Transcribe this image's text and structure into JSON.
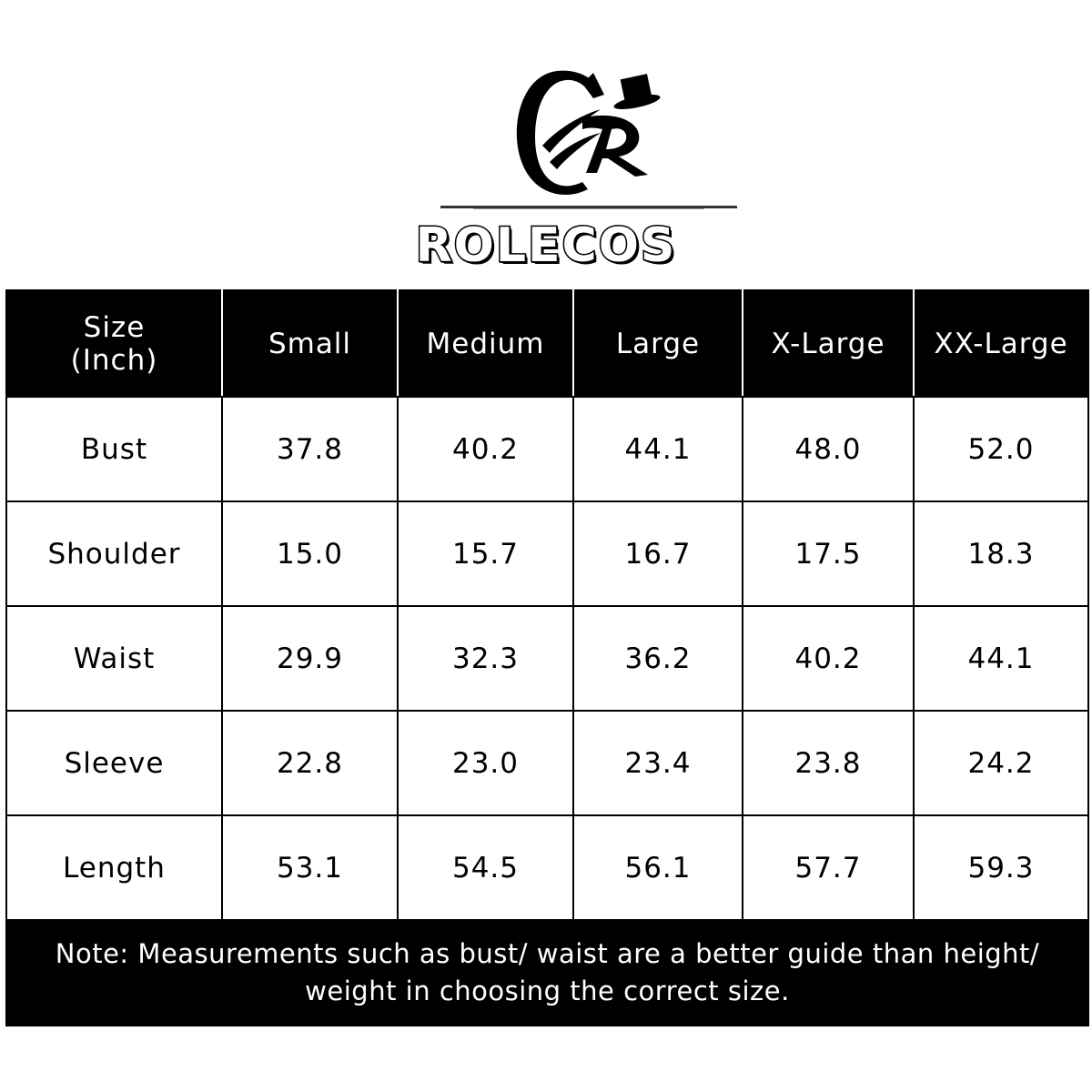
{
  "brand": {
    "monogram": "CR",
    "name": "ROLECOS"
  },
  "size_chart": {
    "corner_label_line1": "Size",
    "corner_label_line2": "(Inch)",
    "sizes": [
      "Small",
      "Medium",
      "Large",
      "X-Large",
      "XX-Large"
    ],
    "rows": [
      {
        "label": "Bust",
        "values": [
          "37.8",
          "40.2",
          "44.1",
          "48.0",
          "52.0"
        ]
      },
      {
        "label": "Shoulder",
        "values": [
          "15.0",
          "15.7",
          "16.7",
          "17.5",
          "18.3"
        ]
      },
      {
        "label": "Waist",
        "values": [
          "29.9",
          "32.3",
          "36.2",
          "40.2",
          "44.1"
        ]
      },
      {
        "label": "Sleeve",
        "values": [
          "22.8",
          "23.0",
          "23.4",
          "23.8",
          "24.2"
        ]
      },
      {
        "label": "Length",
        "values": [
          "53.1",
          "54.5",
          "56.1",
          "57.7",
          "59.3"
        ]
      }
    ],
    "note_line1": "Note: Measurements such as bust/ waist are a better guide than height/",
    "note_line2": "weight in choosing the correct size."
  },
  "colors": {
    "header_bg": "#000000",
    "header_text": "#ffffff",
    "body_bg": "#ffffff"
  }
}
